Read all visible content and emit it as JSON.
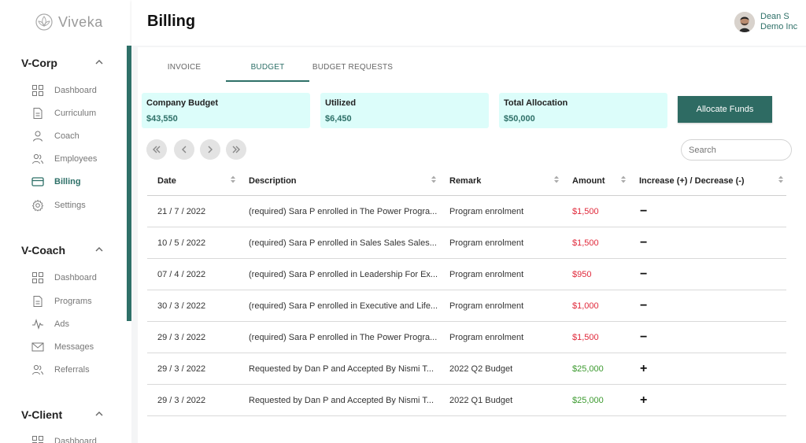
{
  "app": {
    "logo_text": "Viveka"
  },
  "sidebar": {
    "sections": [
      {
        "title": "V-Corp",
        "items": [
          {
            "label": "Dashboard",
            "icon": "dashboard-icon"
          },
          {
            "label": "Curriculum",
            "icon": "document-icon"
          },
          {
            "label": "Coach",
            "icon": "person-icon"
          },
          {
            "label": "Employees",
            "icon": "people-icon"
          },
          {
            "label": "Billing",
            "icon": "card-icon",
            "active": true
          },
          {
            "label": "Settings",
            "icon": "gear-icon"
          }
        ]
      },
      {
        "title": "V-Coach",
        "items": [
          {
            "label": "Dashboard",
            "icon": "dashboard-icon"
          },
          {
            "label": "Programs",
            "icon": "document-icon"
          },
          {
            "label": "Ads",
            "icon": "pulse-icon"
          },
          {
            "label": "Messages",
            "icon": "mail-icon"
          },
          {
            "label": "Referrals",
            "icon": "people-icon"
          }
        ]
      },
      {
        "title": "V-Client",
        "items": [
          {
            "label": "Dashboard",
            "icon": "dashboard-icon"
          }
        ]
      }
    ]
  },
  "header": {
    "title": "Billing",
    "user_name": "Dean S",
    "user_org": "Demo Inc"
  },
  "tabs": [
    {
      "label": "INVOICE",
      "active": false
    },
    {
      "label": "BUDGET",
      "active": true
    },
    {
      "label": "BUDGET REQUESTS",
      "active": false
    }
  ],
  "stats": [
    {
      "label": "Company Budget",
      "value": "$43,550"
    },
    {
      "label": "Utilized",
      "value": "$6,450"
    },
    {
      "label": "Total Allocation",
      "value": "$50,000"
    }
  ],
  "allocate_button": "Allocate Funds",
  "search": {
    "placeholder": "Search"
  },
  "table": {
    "columns": [
      "Date",
      "Description",
      "Remark",
      "Amount",
      "Increase (+) / Decrease (-)"
    ],
    "rows": [
      {
        "date": "21 / 7 / 2022",
        "description": "(required) Sara P enrolled in The Power Progra...",
        "remark": "Program enrolment",
        "amount": "$1,500",
        "type": "decrease",
        "sign": "−"
      },
      {
        "date": "10 / 5 / 2022",
        "description": "(required) Sara P enrolled in Sales Sales Sales...",
        "remark": "Program enrolment",
        "amount": "$1,500",
        "type": "decrease",
        "sign": "−"
      },
      {
        "date": "07 / 4 / 2022",
        "description": "(required) Sara P enrolled in Leadership For Ex...",
        "remark": "Program enrolment",
        "amount": "$950",
        "type": "decrease",
        "sign": "−"
      },
      {
        "date": "30 / 3 / 2022",
        "description": "(required) Sara P enrolled in Executive and Life...",
        "remark": "Program enrolment",
        "amount": "$1,000",
        "type": "decrease",
        "sign": "−"
      },
      {
        "date": "29 / 3 / 2022",
        "description": "(required) Sara P enrolled in The Power Progra...",
        "remark": "Program enrolment",
        "amount": "$1,500",
        "type": "decrease",
        "sign": "−"
      },
      {
        "date": "29 / 3 / 2022",
        "description": "Requested by Dan P and Accepted By Nismi T...",
        "remark": "2022 Q2 Budget",
        "amount": "$25,000",
        "type": "increase",
        "sign": "+"
      },
      {
        "date": "29 / 3 / 2022",
        "description": "Requested by Dan P and Accepted By Nismi T...",
        "remark": "2022 Q1 Budget",
        "amount": "$25,000",
        "type": "increase",
        "sign": "+"
      }
    ]
  },
  "colors": {
    "accent": "#2e7068",
    "stat_bg": "#dcfdfa",
    "negative": "#e0283a",
    "positive": "#3c9a2f"
  }
}
